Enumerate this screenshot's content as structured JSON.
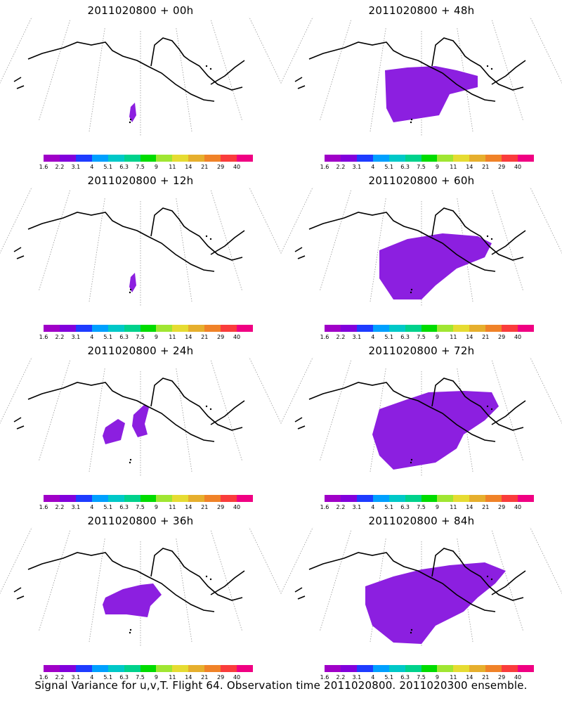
{
  "panels": [
    {
      "title": "2011020800 + 00h",
      "extent": "tiny"
    },
    {
      "title": "2011020800 + 48h",
      "extent": "medium"
    },
    {
      "title": "2011020800 + 12h",
      "extent": "tiny"
    },
    {
      "title": "2011020800 + 60h",
      "extent": "large"
    },
    {
      "title": "2011020800 + 24h",
      "extent": "small"
    },
    {
      "title": "2011020800 + 72h",
      "extent": "xlarge"
    },
    {
      "title": "2011020800 + 36h",
      "extent": "smallplus"
    },
    {
      "title": "2011020800 + 84h",
      "extent": "xxlarge"
    }
  ],
  "colorbar": {
    "labels": [
      "1.6",
      "2.2",
      "3.1",
      "4",
      "5.1",
      "6.3",
      "7.5",
      "9",
      "11",
      "14",
      "21",
      "29",
      "40"
    ],
    "colors": [
      "#a000c8",
      "#8200dc",
      "#1e3cff",
      "#00a0ff",
      "#00c8c8",
      "#00d28c",
      "#00dc00",
      "#a0e632",
      "#e6dc32",
      "#e6af2d",
      "#f08228",
      "#fa3c3c",
      "#f00082"
    ]
  },
  "variance_fill": "#8c1fe0",
  "caption": "Signal Variance for u,v,T. Flight 64. Observation time 2011020800. 2011020300 ensemble."
}
